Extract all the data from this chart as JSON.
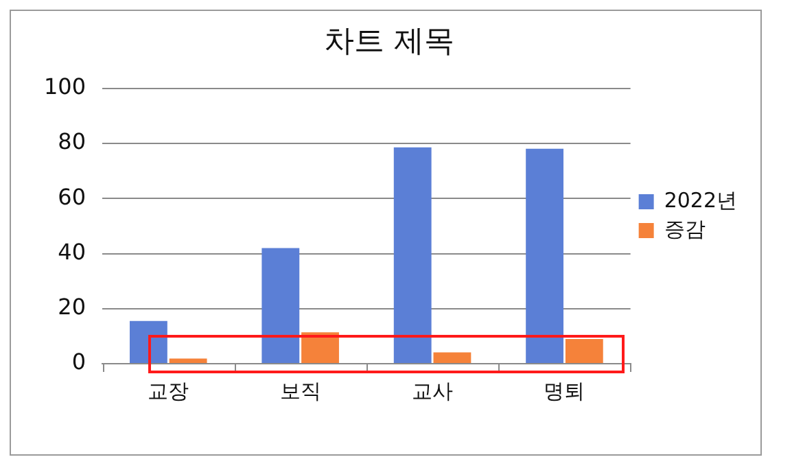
{
  "chart_data": {
    "type": "bar",
    "title": "차트 제목",
    "categories": [
      "교장",
      "보직",
      "교사",
      "명퇴"
    ],
    "series": [
      {
        "name": "2022년",
        "color": "#5b7fd6",
        "values": [
          15.5,
          42,
          78.6,
          78.1
        ]
      },
      {
        "name": "증감",
        "color": "#f5823a",
        "values": [
          1.9,
          11.4,
          4.1,
          9
        ]
      }
    ],
    "ylim": [
      0,
      100
    ],
    "yticks": [
      0,
      20,
      40,
      60,
      80,
      100
    ],
    "grid": "y",
    "legend": "right"
  }
}
